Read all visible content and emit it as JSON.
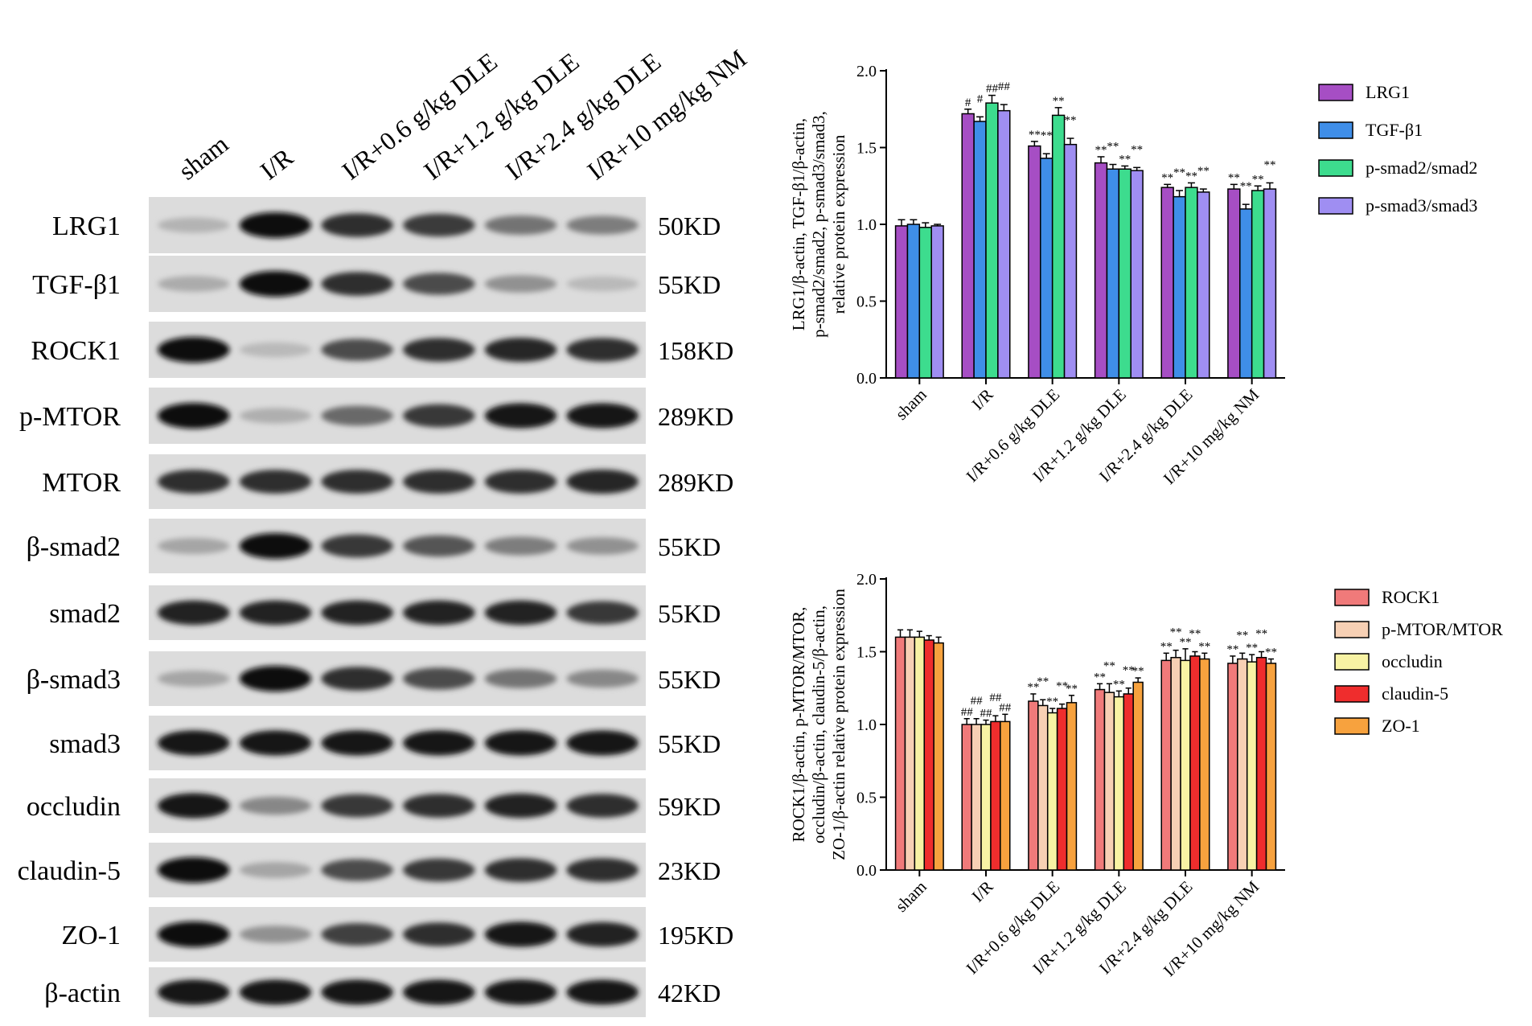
{
  "blot": {
    "lanes": [
      "sham",
      "I/R",
      "I/R+0.6 g/kg DLE",
      "I/R+1.2 g/kg DLE",
      "I/R+2.4 g/kg DLE",
      "I/R+10 mg/kg NM"
    ],
    "rows": [
      {
        "label": "LRG1",
        "kd": "50KD",
        "intensity": [
          0.18,
          1.0,
          0.85,
          0.78,
          0.5,
          0.45
        ]
      },
      {
        "label": "TGF-β1",
        "kd": "55KD",
        "intensity": [
          0.22,
          1.0,
          0.85,
          0.7,
          0.35,
          0.15
        ]
      },
      {
        "label": "ROCK1",
        "kd": "158KD",
        "intensity": [
          1.0,
          0.15,
          0.7,
          0.85,
          0.88,
          0.85
        ]
      },
      {
        "label": "p-MTOR",
        "kd": "289KD",
        "intensity": [
          1.0,
          0.2,
          0.55,
          0.8,
          0.95,
          0.95
        ]
      },
      {
        "label": "MTOR",
        "kd": "289KD",
        "intensity": [
          0.85,
          0.85,
          0.85,
          0.85,
          0.85,
          0.88
        ]
      },
      {
        "label": "β-smad2",
        "kd": "55KD",
        "intensity": [
          0.25,
          1.0,
          0.8,
          0.65,
          0.45,
          0.35
        ]
      },
      {
        "label": "smad2",
        "kd": "55KD",
        "intensity": [
          0.9,
          0.9,
          0.9,
          0.9,
          0.9,
          0.8
        ]
      },
      {
        "label": "β-smad3",
        "kd": "55KD",
        "intensity": [
          0.25,
          1.0,
          0.85,
          0.7,
          0.5,
          0.4
        ]
      },
      {
        "label": "smad3",
        "kd": "55KD",
        "intensity": [
          0.95,
          0.95,
          0.95,
          0.95,
          0.95,
          0.95
        ]
      },
      {
        "label": "occludin",
        "kd": "59KD",
        "intensity": [
          0.95,
          0.4,
          0.8,
          0.85,
          0.9,
          0.85
        ]
      },
      {
        "label": "claudin-5",
        "kd": "23KD",
        "intensity": [
          1.0,
          0.25,
          0.7,
          0.8,
          0.85,
          0.85
        ]
      },
      {
        "label": "ZO-1",
        "kd": "195KD",
        "intensity": [
          1.0,
          0.35,
          0.75,
          0.85,
          0.95,
          0.9
        ]
      },
      {
        "label": "β-actin",
        "kd": "42KD",
        "intensity": [
          0.95,
          0.95,
          0.95,
          0.95,
          0.95,
          0.95
        ]
      }
    ]
  },
  "chart_data": [
    {
      "type": "bar",
      "ylabel_lines": [
        "LRG1/β-actin, TGF-β1/β-actin,",
        "p-smad2/smad2, p-smad3/smad3,",
        "relative protein expression"
      ],
      "ylim": [
        0,
        2.0
      ],
      "yticks": [
        "0.0",
        "0.5",
        "1.0",
        "1.5",
        "2.0"
      ],
      "categories": [
        "sham",
        "I/R",
        "I/R+0.6 g/kg DLE",
        "I/R+1.2 g/kg DLE",
        "I/R+2.4 g/kg DLE",
        "I/R+10 mg/kg NM"
      ],
      "series": [
        {
          "name": "LRG1",
          "color": "#a64ec4",
          "values": [
            0.99,
            1.72,
            1.51,
            1.4,
            1.24,
            1.23
          ],
          "err": [
            0.04,
            0.03,
            0.03,
            0.04,
            0.02,
            0.03
          ],
          "marks": [
            "",
            "#",
            "**",
            "**",
            "**",
            "**"
          ]
        },
        {
          "name": "TGF-β1",
          "color": "#3f8ee8",
          "values": [
            1.0,
            1.67,
            1.43,
            1.36,
            1.18,
            1.1
          ],
          "err": [
            0.03,
            0.03,
            0.03,
            0.03,
            0.04,
            0.03
          ],
          "marks": [
            "",
            "#",
            "**",
            "**",
            "**",
            "**"
          ]
        },
        {
          "name": "p-smad2/smad2",
          "color": "#3ddc8e",
          "values": [
            0.98,
            1.79,
            1.71,
            1.36,
            1.24,
            1.22
          ],
          "err": [
            0.03,
            0.05,
            0.05,
            0.02,
            0.03,
            0.03
          ],
          "marks": [
            "",
            "##",
            "**",
            "**",
            "**",
            "**"
          ]
        },
        {
          "name": "p-smad3/smad3",
          "color": "#9f8ef2",
          "values": [
            0.99,
            1.74,
            1.52,
            1.35,
            1.21,
            1.23
          ],
          "err": [
            0.01,
            0.04,
            0.04,
            0.02,
            0.02,
            0.04
          ],
          "marks": [
            "",
            "##",
            "**",
            "**",
            "**",
            "**"
          ]
        }
      ]
    },
    {
      "type": "bar",
      "ylabel_lines": [
        "ROCK1/β-actin, p-MTOR/MTOR,",
        "occludin/β-actin, claudin-5/β-actin,",
        "ZO-1/β-actin  relative protein expression"
      ],
      "ylim": [
        0,
        2.0
      ],
      "yticks": [
        "0.0",
        "0.5",
        "1.0",
        "1.5",
        "2.0"
      ],
      "categories": [
        "sham",
        "I/R",
        "I/R+0.6 g/kg DLE",
        "I/R+1.2 g/kg DLE",
        "I/R+2.4 g/kg DLE",
        "I/R+10 mg/kg NM"
      ],
      "series": [
        {
          "name": "ROCK1",
          "color": "#f07a7a",
          "values": [
            1.6,
            1.0,
            1.16,
            1.24,
            1.44,
            1.42
          ],
          "err": [
            0.05,
            0.04,
            0.05,
            0.04,
            0.05,
            0.05
          ],
          "marks": [
            "",
            "##",
            "**",
            "**",
            "**",
            "**"
          ]
        },
        {
          "name": "p-MTOR/MTOR",
          "color": "#f7d0b4",
          "values": [
            1.6,
            1.0,
            1.13,
            1.22,
            1.46,
            1.45
          ],
          "err": [
            0.05,
            0.04,
            0.04,
            0.06,
            0.05,
            0.04
          ],
          "marks": [
            "",
            "##",
            "**",
            "**",
            "**",
            "**"
          ]
        },
        {
          "name": "occludin",
          "color": "#f8f3a4",
          "values": [
            1.6,
            1.0,
            1.08,
            1.19,
            1.44,
            1.43
          ],
          "err": [
            0.04,
            0.03,
            0.03,
            0.04,
            0.08,
            0.05
          ],
          "marks": [
            "",
            "##",
            "**",
            "**",
            "**",
            "**"
          ]
        },
        {
          "name": "claudin-5",
          "color": "#ef2d2d",
          "values": [
            1.58,
            1.02,
            1.11,
            1.21,
            1.47,
            1.46
          ],
          "err": [
            0.03,
            0.04,
            0.03,
            0.04,
            0.03,
            0.04
          ],
          "marks": [
            "",
            "##",
            "**",
            "**",
            "**",
            "**"
          ]
        },
        {
          "name": "ZO-1",
          "color": "#f7a23e",
          "values": [
            1.56,
            1.02,
            1.15,
            1.29,
            1.45,
            1.42
          ],
          "err": [
            0.04,
            0.05,
            0.05,
            0.03,
            0.04,
            0.03
          ],
          "marks": [
            "",
            "##",
            "**",
            "**",
            "**",
            "**"
          ]
        }
      ]
    }
  ]
}
